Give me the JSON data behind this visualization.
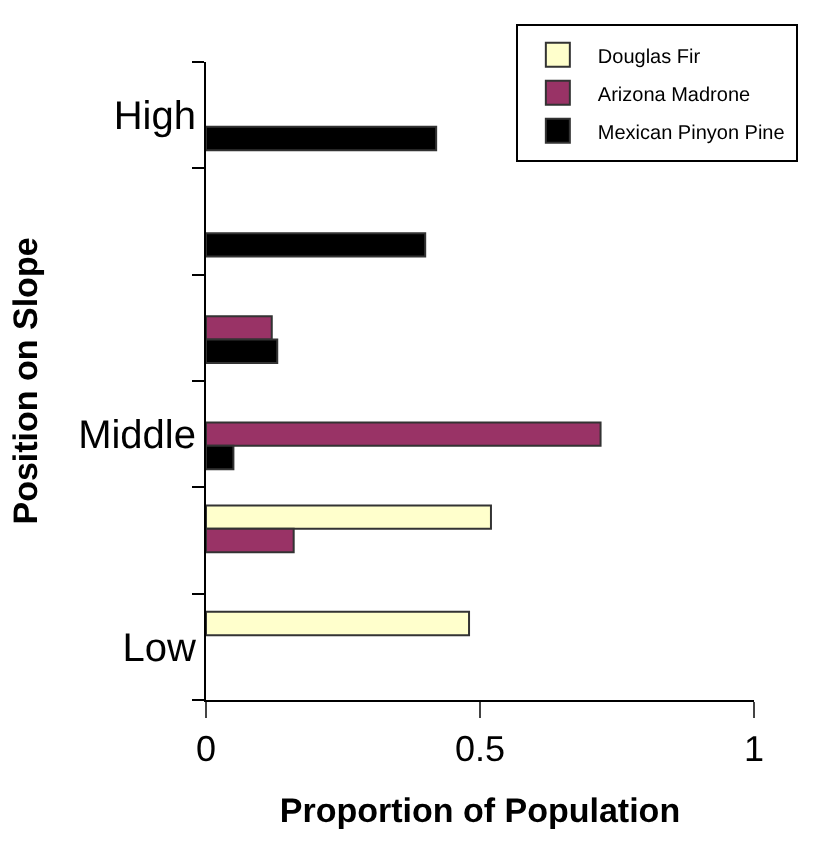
{
  "chart_data": {
    "type": "bar",
    "orientation": "horizontal",
    "xlabel": "Proportion of Population",
    "ylabel": "Position on Slope",
    "categories": [
      "High",
      null,
      null,
      "Middle",
      null,
      "Low"
    ],
    "series": [
      {
        "name": "Douglas Fir",
        "color": "#ffffcc",
        "values": [
          null,
          null,
          null,
          null,
          0.52,
          0.48
        ]
      },
      {
        "name": "Arizona Madrone",
        "color": "#993366",
        "values": [
          null,
          null,
          0.12,
          0.72,
          0.16,
          null
        ]
      },
      {
        "name": "Mexican Pinyon Pine",
        "color": "#000000",
        "values": [
          0.42,
          0.4,
          0.13,
          0.05,
          null,
          null
        ]
      }
    ],
    "xlim": [
      0,
      1
    ],
    "xticks": [
      0,
      0.5,
      1
    ],
    "legend": "top right"
  }
}
